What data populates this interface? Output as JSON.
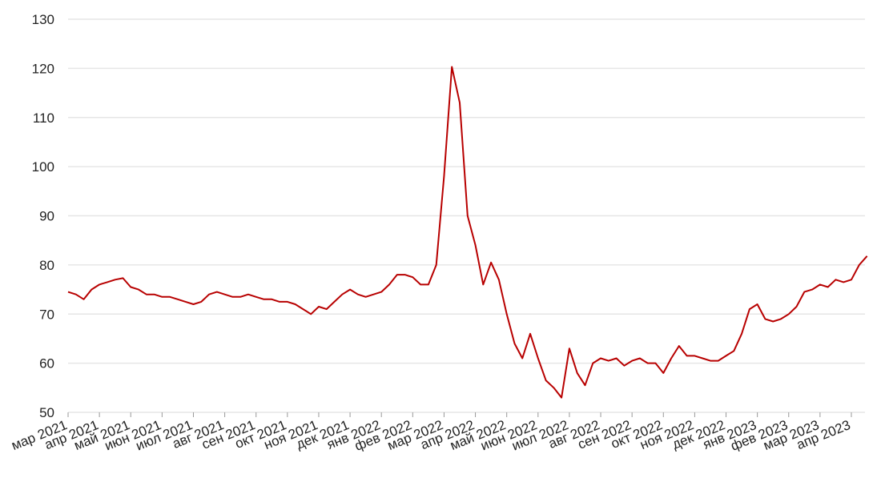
{
  "chart_data": {
    "type": "line",
    "categories": [
      "мар 2021",
      null,
      null,
      null,
      "апр 2021",
      null,
      null,
      null,
      "май 2021",
      null,
      null,
      null,
      "июн 2021",
      null,
      null,
      null,
      "июл 2021",
      null,
      null,
      null,
      "авг 2021",
      null,
      null,
      null,
      "сен 2021",
      null,
      null,
      null,
      "окт 2021",
      null,
      null,
      null,
      "ноя 2021",
      null,
      null,
      null,
      "дек 2021",
      null,
      null,
      null,
      "янв 2022",
      null,
      null,
      null,
      "фев 2022",
      null,
      null,
      null,
      "мар 2022",
      null,
      null,
      null,
      "апр 2022",
      null,
      null,
      null,
      "май 2022",
      null,
      null,
      null,
      "июн 2022",
      null,
      null,
      null,
      "июл 2022",
      null,
      null,
      null,
      "авг 2022",
      null,
      null,
      null,
      "сен 2022",
      null,
      null,
      null,
      "окт 2022",
      null,
      null,
      null,
      "ноя 2022",
      null,
      null,
      null,
      "дек 2022",
      null,
      null,
      null,
      "янв 2023",
      null,
      null,
      null,
      "фев 2023",
      null,
      null,
      null,
      "мар 2023",
      null,
      null,
      null,
      "апр 2023",
      null,
      null
    ],
    "values": [
      74.5,
      74,
      73,
      75,
      76,
      76.5,
      77,
      77.3,
      75.5,
      75,
      74,
      74,
      73.5,
      73.5,
      73,
      72.5,
      72,
      72.5,
      74,
      74.5,
      74,
      73.5,
      73.5,
      74,
      73.5,
      73,
      73,
      72.5,
      72.5,
      72,
      71,
      70,
      71.5,
      71,
      72.5,
      74,
      75,
      74,
      73.5,
      74,
      74.5,
      76,
      78,
      78,
      77.5,
      76,
      76,
      80,
      98,
      120.3,
      113,
      90,
      84,
      76,
      80.5,
      77,
      70,
      64,
      61,
      66,
      61,
      56.5,
      55,
      53,
      63,
      58,
      55.5,
      60,
      61,
      60.5,
      61,
      59.5,
      60.5,
      61,
      60,
      60,
      58,
      61,
      63.5,
      61.5,
      61.5,
      61,
      60.5,
      60.5,
      61.5,
      62.5,
      66,
      71,
      72,
      69,
      68.5,
      69,
      70,
      71.5,
      74.5,
      75,
      76,
      75.5,
      77,
      76.5,
      77,
      80,
      81.8
    ],
    "color": "#b80000",
    "ylim": [
      50,
      130
    ],
    "yticks": [
      50,
      60,
      70,
      80,
      90,
      100,
      110,
      120,
      130
    ],
    "grid": true
  }
}
